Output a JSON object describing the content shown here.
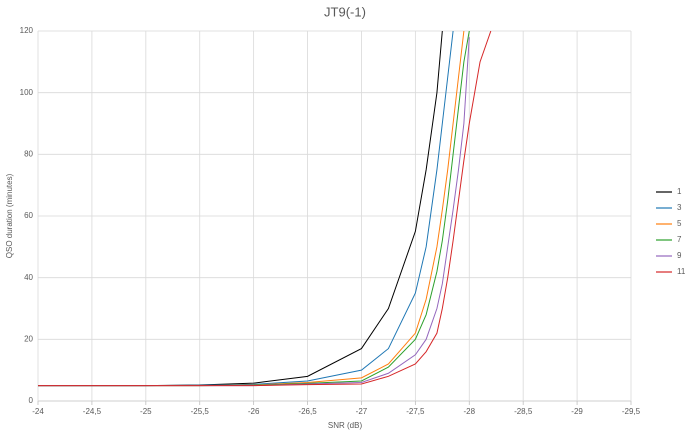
{
  "chart_data": {
    "type": "line",
    "title": "JT9(-1)",
    "x_label": "SNR (dB)",
    "y_label": "QSO duration (minutes)",
    "x": [
      -24,
      -24.5,
      -25,
      -25.5,
      -26,
      -26.5,
      -27,
      -27.25,
      -27.5,
      -27.6,
      -27.7,
      -27.75,
      -27.8,
      -27.85,
      -27.9,
      -27.95,
      -28,
      -28.1,
      -28.2
    ],
    "series": [
      {
        "name": "1",
        "color": "#000000",
        "values": [
          5,
          5,
          5,
          5.2,
          5.8,
          8,
          17,
          30,
          55,
          75,
          100,
          120,
          null,
          null,
          null,
          null,
          null,
          null,
          null
        ]
      },
      {
        "name": "3",
        "color": "#1f77b4",
        "values": [
          5,
          5,
          5,
          5.1,
          5.4,
          6.5,
          10,
          17,
          35,
          50,
          75,
          90,
          105,
          120,
          null,
          null,
          null,
          null,
          null
        ]
      },
      {
        "name": "5",
        "color": "#ff7f0e",
        "values": [
          5,
          5,
          5,
          5,
          5.2,
          6,
          7.5,
          12,
          22,
          33,
          50,
          62,
          75,
          90,
          105,
          120,
          null,
          null,
          null
        ]
      },
      {
        "name": "7",
        "color": "#2ca02c",
        "values": [
          5,
          5,
          5,
          5,
          5.1,
          5.7,
          6.5,
          11,
          20,
          28,
          42,
          52,
          65,
          80,
          95,
          110,
          120,
          null,
          null
        ]
      },
      {
        "name": "9",
        "color": "#9467bd",
        "values": [
          5,
          5,
          5,
          5,
          5,
          5.5,
          6,
          9,
          15,
          20,
          30,
          38,
          50,
          62,
          75,
          90,
          118,
          null,
          null
        ]
      },
      {
        "name": "11",
        "color": "#d62728",
        "values": [
          5,
          5,
          5,
          5,
          5,
          5.3,
          5.5,
          8,
          12,
          16,
          22,
          30,
          40,
          52,
          65,
          78,
          90,
          110,
          120
        ]
      }
    ],
    "xlim": [
      -24,
      -29.5
    ],
    "xticks": [
      -24,
      {
        "value": -24.5,
        "label": "-24,5"
      },
      -25,
      {
        "value": -25.5,
        "label": "-25,5"
      },
      -26,
      {
        "value": -26.5,
        "label": "-26,5"
      },
      -27,
      {
        "value": -27.5,
        "label": "-27,5"
      },
      -28,
      {
        "value": -28.5,
        "label": "-28,5"
      },
      -29,
      {
        "value": -29.5,
        "label": "-29,5"
      }
    ],
    "ylim": [
      0,
      120
    ],
    "yticks": [
      0,
      20,
      40,
      60,
      80,
      100,
      120
    ],
    "grid": true,
    "legend": "right"
  }
}
